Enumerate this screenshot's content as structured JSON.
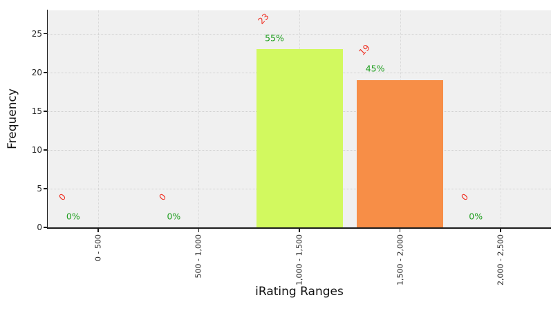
{
  "figure": {
    "background": "#ffffff",
    "plot_background": "#f0f0f0",
    "grid_color_h": "#cfcfcf",
    "grid_color_v": "#d8d8d8",
    "axis_color": "#1a1a1a",
    "tick_label_color": "#262626"
  },
  "chart_data": {
    "type": "bar",
    "title": "",
    "xlabel": "iRating Ranges",
    "ylabel": "Frequency",
    "categories": [
      "0 - 500",
      "500 - 1,000",
      "1,000 - 1,500",
      "1,500 - 2,000",
      "2,000 - 2,500"
    ],
    "values": [
      0,
      0,
      23,
      19,
      0
    ],
    "count_labels": [
      "0",
      "0",
      "23",
      "19",
      "0"
    ],
    "percent_labels": [
      "0%",
      "0%",
      "55%",
      "45%",
      "0%"
    ],
    "bar_colors": [
      null,
      null,
      "#d2f95f",
      "#f78e47",
      null
    ],
    "count_label_color": "#ef3124",
    "percent_label_color": "#1e9e1e",
    "yticks": [
      0,
      5,
      10,
      15,
      20,
      25
    ],
    "ylim": [
      0,
      28
    ],
    "grid": true,
    "legend": false,
    "x_tick_rotation": 90,
    "count_label_rotation": 45
  }
}
